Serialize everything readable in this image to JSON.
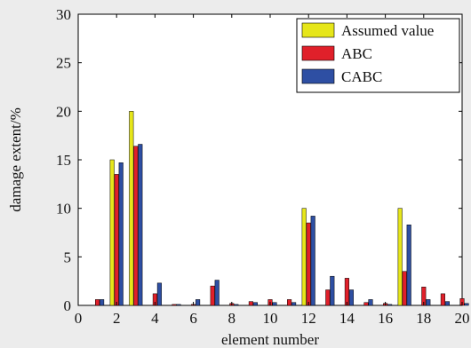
{
  "chart_data": {
    "type": "bar",
    "xlabel": "element number",
    "ylabel": "damage extent/%",
    "xlim": [
      0,
      20
    ],
    "ylim": [
      0,
      30
    ],
    "x_ticks": [
      "0",
      "2",
      "4",
      "6",
      "8",
      "10",
      "12",
      "14",
      "16",
      "18",
      "20"
    ],
    "y_ticks": [
      "0",
      "5",
      "10",
      "15",
      "20",
      "25",
      "30"
    ],
    "grid": false,
    "legend_position": "top-right",
    "categories": [
      1,
      2,
      3,
      4,
      5,
      6,
      7,
      8,
      9,
      10,
      11,
      12,
      13,
      14,
      15,
      16,
      17,
      18,
      19,
      20
    ],
    "series": [
      {
        "name": "Assumed value",
        "color": "#e6e61a",
        "values": [
          0,
          15,
          20,
          0,
          0,
          0,
          0,
          0,
          0,
          0,
          0,
          10,
          0,
          0,
          0,
          0,
          10,
          0,
          0,
          0
        ]
      },
      {
        "name": "ABC",
        "color": "#e0202a",
        "values": [
          0.6,
          13.5,
          16.4,
          1.2,
          0.1,
          0.1,
          2.0,
          0.2,
          0.4,
          0.6,
          0.6,
          8.5,
          1.6,
          2.8,
          0.3,
          0.2,
          3.5,
          1.9,
          1.2,
          0.7
        ]
      },
      {
        "name": "CABC",
        "color": "#2e4fa3",
        "values": [
          0.6,
          14.7,
          16.6,
          2.3,
          0.1,
          0.6,
          2.6,
          0.1,
          0.3,
          0.3,
          0.3,
          9.2,
          3.0,
          1.6,
          0.6,
          0.1,
          8.3,
          0.6,
          0.4,
          0.2
        ]
      }
    ]
  }
}
